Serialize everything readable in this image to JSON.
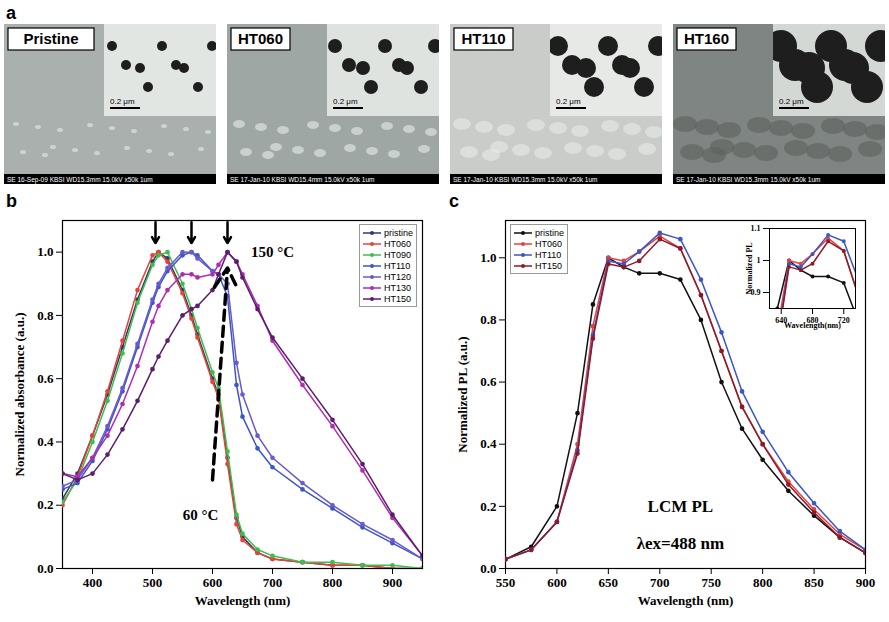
{
  "image_panel": {
    "panel": "a",
    "images": [
      {
        "label": "Pristine",
        "scale_bar": "0.2 μm",
        "footer": "SE 16-Sep-09 KBSI WD15.3mm 15.0kV x50k 1um"
      },
      {
        "label": "HT060",
        "scale_bar": "0.2 μm",
        "footer": "SE 17-Jan-10 KBSI WD15.4mm 15.0kV x50k 1um"
      },
      {
        "label": "HT110",
        "scale_bar": "0.2 μm",
        "footer": "SE 17-Jan-10 KBSI WD15.3mm 15.0kV x50k 1um"
      },
      {
        "label": "HT160",
        "scale_bar": "0.2 μm",
        "footer": "SE 17-Jan-10 KBSI WD15.3mm 15.0kV x50k 1um"
      }
    ]
  },
  "chart_data": [
    {
      "panel": "b",
      "type": "line",
      "marker": "circle",
      "legend": "top-right",
      "grid": false,
      "xlabel": "Wavelength (nm)",
      "ylabel": "Normalized absorbance (a.u.)",
      "xlim": [
        350,
        950
      ],
      "ylim": [
        0,
        1.1
      ],
      "xticks": [
        400,
        500,
        600,
        700,
        800,
        900
      ],
      "yticks": [
        {
          "value": 0,
          "label": "0.0"
        },
        {
          "value": 0.2,
          "label": "0.2"
        },
        {
          "value": 0.4,
          "label": "0.4"
        },
        {
          "value": 0.6,
          "label": "0.6"
        },
        {
          "value": 0.8,
          "label": "0.8"
        },
        {
          "value": 1,
          "label": "1.0"
        }
      ],
      "x": [
        350,
        375,
        400,
        425,
        450,
        475,
        500,
        510,
        525,
        550,
        565,
        575,
        600,
        610,
        625,
        640,
        650,
        675,
        700,
        750,
        800,
        850,
        900,
        950
      ],
      "series": [
        {
          "name": "pristine",
          "color": "#2e3a6e",
          "values": [
            0.22,
            0.3,
            0.42,
            0.55,
            0.7,
            0.85,
            0.97,
            1.0,
            0.98,
            0.88,
            0.8,
            0.74,
            0.6,
            0.55,
            0.35,
            0.16,
            0.1,
            0.05,
            0.03,
            0.02,
            0.01,
            0.01,
            0.0,
            0.0
          ]
        },
        {
          "name": "HT060",
          "color": "#e8413c",
          "values": [
            0.2,
            0.29,
            0.42,
            0.56,
            0.72,
            0.88,
            0.99,
            1.0,
            0.97,
            0.87,
            0.79,
            0.73,
            0.59,
            0.54,
            0.33,
            0.14,
            0.09,
            0.05,
            0.03,
            0.02,
            0.01,
            0.01,
            0.0,
            0.0
          ]
        },
        {
          "name": "HT090",
          "color": "#3cbf4a",
          "values": [
            0.21,
            0.28,
            0.4,
            0.53,
            0.68,
            0.84,
            0.96,
            0.99,
            1.0,
            0.9,
            0.82,
            0.76,
            0.62,
            0.57,
            0.37,
            0.17,
            0.11,
            0.06,
            0.04,
            0.02,
            0.02,
            0.01,
            0.01,
            0.0
          ]
        },
        {
          "name": "HT110",
          "color": "#3a56c8",
          "values": [
            0.25,
            0.27,
            0.34,
            0.44,
            0.56,
            0.7,
            0.84,
            0.89,
            0.94,
            0.99,
            1.0,
            0.99,
            0.94,
            0.93,
            0.86,
            0.58,
            0.48,
            0.38,
            0.32,
            0.25,
            0.19,
            0.13,
            0.08,
            0.03
          ]
        },
        {
          "name": "HT120",
          "color": "#6a5acd",
          "values": [
            0.26,
            0.28,
            0.35,
            0.45,
            0.57,
            0.71,
            0.85,
            0.9,
            0.95,
            1.0,
            1.0,
            0.98,
            0.94,
            0.93,
            0.9,
            0.65,
            0.55,
            0.42,
            0.35,
            0.27,
            0.2,
            0.14,
            0.09,
            0.03
          ]
        },
        {
          "name": "HT130",
          "color": "#b02cb0",
          "values": [
            0.3,
            0.29,
            0.35,
            0.42,
            0.52,
            0.64,
            0.78,
            0.83,
            0.88,
            0.93,
            0.93,
            0.92,
            0.93,
            0.96,
            1.0,
            0.97,
            0.93,
            0.83,
            0.72,
            0.58,
            0.45,
            0.31,
            0.16,
            0.04
          ]
        },
        {
          "name": "HT150",
          "color": "#5b1e6e",
          "values": [
            0.3,
            0.28,
            0.3,
            0.36,
            0.44,
            0.53,
            0.63,
            0.67,
            0.72,
            0.8,
            0.82,
            0.83,
            0.88,
            0.93,
            1.0,
            0.97,
            0.92,
            0.82,
            0.73,
            0.6,
            0.47,
            0.33,
            0.17,
            0.04
          ]
        }
      ],
      "annotations": [
        {
          "text": "150 °C",
          "x": 700,
          "y": 1.0
        },
        {
          "text": "60 °C",
          "x": 580,
          "y": 0.17
        }
      ],
      "peak_markers": [
        505,
        565,
        625
      ],
      "trend_arrow": {
        "x": [
          600,
          625
        ],
        "y": [
          0.28,
          0.95
        ]
      }
    },
    {
      "panel": "c",
      "type": "line",
      "marker": "circle",
      "legend": "top-left",
      "grid": false,
      "xlabel": "Wavelength (nm)",
      "ylabel": "Normalized PL (a.u.)",
      "xlim": [
        550,
        900
      ],
      "ylim": [
        0,
        1.12
      ],
      "xticks": [
        550,
        600,
        650,
        700,
        750,
        800,
        850,
        900
      ],
      "yticks": [
        {
          "value": 0,
          "label": "0.0"
        },
        {
          "value": 0.2,
          "label": "0.2"
        },
        {
          "value": 0.4,
          "label": "0.4"
        },
        {
          "value": 0.6,
          "label": "0.6"
        },
        {
          "value": 0.8,
          "label": "0.8"
        },
        {
          "value": 1,
          "label": "1.0"
        }
      ],
      "x": [
        550,
        575,
        600,
        620,
        635,
        650,
        665,
        680,
        700,
        720,
        740,
        760,
        780,
        800,
        825,
        850,
        875,
        900
      ],
      "series": [
        {
          "name": "pristine",
          "color": "#111111",
          "values": [
            0.03,
            0.07,
            0.2,
            0.5,
            0.85,
            1.0,
            0.97,
            0.95,
            0.95,
            0.93,
            0.8,
            0.6,
            0.45,
            0.35,
            0.25,
            0.17,
            0.1,
            0.05
          ]
        },
        {
          "name": "HT060",
          "color": "#e8413c",
          "values": [
            0.03,
            0.06,
            0.15,
            0.4,
            0.78,
            1.0,
            0.99,
            1.02,
            1.07,
            1.03,
            0.88,
            0.7,
            0.52,
            0.4,
            0.28,
            0.19,
            0.11,
            0.06
          ]
        },
        {
          "name": "HT110",
          "color": "#3a56c8",
          "values": [
            0.03,
            0.06,
            0.15,
            0.38,
            0.75,
            0.99,
            0.98,
            1.02,
            1.08,
            1.06,
            0.93,
            0.76,
            0.57,
            0.44,
            0.31,
            0.21,
            0.12,
            0.06
          ]
        },
        {
          "name": "HT150",
          "color": "#8b1a2b",
          "values": [
            0.03,
            0.06,
            0.15,
            0.37,
            0.74,
            0.98,
            0.97,
            0.99,
            1.06,
            1.03,
            0.88,
            0.7,
            0.52,
            0.4,
            0.27,
            0.18,
            0.1,
            0.05
          ]
        }
      ],
      "annotations": [
        {
          "text": "LCM PL",
          "x": 720,
          "y": 0.2
        },
        {
          "text": "λex=488 nm",
          "x": 720,
          "y": 0.08
        }
      ],
      "inset": {
        "xlabel": "Wavelength(nm)",
        "ylabel": "Normalized PL",
        "xlim": [
          625,
          735
        ],
        "ylim": [
          0.85,
          1.1
        ],
        "xticks": [
          640,
          680,
          720
        ],
        "yticks": [
          0.9,
          1,
          1.1
        ]
      }
    }
  ]
}
